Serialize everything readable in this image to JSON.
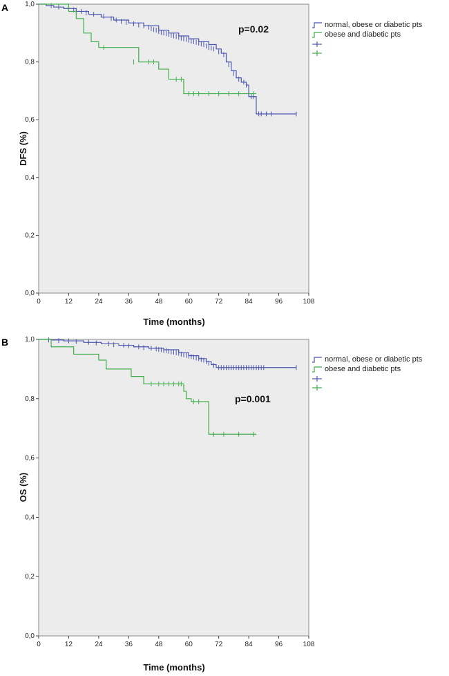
{
  "chart_data": [
    {
      "type": "line",
      "panel_label": "A",
      "xlabel": "Time (months)",
      "ylabel": "DFS (%)",
      "annotation": "p=0.02",
      "xlim": [
        0,
        108
      ],
      "ylim": [
        0.0,
        1.0
      ],
      "xticks": [
        "0",
        "12",
        "24",
        "36",
        "48",
        "60",
        "72",
        "84",
        "96",
        "108"
      ],
      "yticks": [
        "0,0",
        "0,2",
        "0,4",
        "0,6",
        "0,8",
        "1,0"
      ],
      "background": "#ececec",
      "legend_placement": "right",
      "series": [
        {
          "name": "normal, obese or diabetic pts",
          "color": "#4a55b0",
          "steps": [
            [
              0,
              1.0
            ],
            [
              3,
              0.995
            ],
            [
              6,
              0.99
            ],
            [
              10,
              0.985
            ],
            [
              15,
              0.975
            ],
            [
              20,
              0.965
            ],
            [
              25,
              0.955
            ],
            [
              30,
              0.945
            ],
            [
              36,
              0.935
            ],
            [
              42,
              0.925
            ],
            [
              48,
              0.91
            ],
            [
              52,
              0.9
            ],
            [
              56,
              0.89
            ],
            [
              60,
              0.88
            ],
            [
              64,
              0.87
            ],
            [
              68,
              0.86
            ],
            [
              71,
              0.845
            ],
            [
              73,
              0.83
            ],
            [
              75,
              0.8
            ],
            [
              77,
              0.77
            ],
            [
              79,
              0.745
            ],
            [
              81,
              0.73
            ],
            [
              83,
              0.72
            ],
            [
              84,
              0.68
            ],
            [
              87,
              0.62
            ],
            [
              103,
              0.62
            ]
          ],
          "censor": [
            [
              5,
              0.995
            ],
            [
              8,
              0.99
            ],
            [
              12,
              0.985
            ],
            [
              14,
              0.98
            ],
            [
              17,
              0.975
            ],
            [
              19,
              0.97
            ],
            [
              22,
              0.965
            ],
            [
              26,
              0.958
            ],
            [
              29,
              0.95
            ],
            [
              31,
              0.945
            ],
            [
              33,
              0.94
            ],
            [
              35,
              0.937
            ],
            [
              38,
              0.932
            ],
            [
              40,
              0.928
            ],
            [
              42,
              0.925
            ],
            [
              44,
              0.92
            ],
            [
              45,
              0.915
            ],
            [
              46,
              0.912
            ],
            [
              47,
              0.91
            ],
            [
              48,
              0.905
            ],
            [
              49,
              0.902
            ],
            [
              50,
              0.9
            ],
            [
              51,
              0.898
            ],
            [
              52,
              0.895
            ],
            [
              53,
              0.892
            ],
            [
              54,
              0.89
            ],
            [
              55,
              0.888
            ],
            [
              56,
              0.885
            ],
            [
              57,
              0.882
            ],
            [
              58,
              0.88
            ],
            [
              59,
              0.878
            ],
            [
              60,
              0.875
            ],
            [
              61,
              0.872
            ],
            [
              62,
              0.87
            ],
            [
              63,
              0.868
            ],
            [
              64,
              0.865
            ],
            [
              65,
              0.862
            ],
            [
              66,
              0.86
            ],
            [
              67,
              0.855
            ],
            [
              68,
              0.85
            ],
            [
              69,
              0.848
            ],
            [
              70,
              0.845
            ],
            [
              72,
              0.835
            ],
            [
              74,
              0.825
            ],
            [
              76,
              0.79
            ],
            [
              78,
              0.76
            ],
            [
              80,
              0.74
            ],
            [
              82,
              0.73
            ],
            [
              83,
              0.72
            ],
            [
              85,
              0.68
            ],
            [
              86,
              0.68
            ],
            [
              88,
              0.62
            ],
            [
              89,
              0.62
            ],
            [
              91,
              0.62
            ],
            [
              93,
              0.62
            ],
            [
              103,
              0.62
            ]
          ]
        },
        {
          "name": "obese and diabetic pts",
          "color": "#3fae4a",
          "steps": [
            [
              0,
              1.0
            ],
            [
              12,
              0.975
            ],
            [
              15,
              0.95
            ],
            [
              18,
              0.9
            ],
            [
              21,
              0.87
            ],
            [
              24,
              0.85
            ],
            [
              40,
              0.8
            ],
            [
              48,
              0.775
            ],
            [
              52,
              0.74
            ],
            [
              58,
              0.69
            ],
            [
              87,
              0.69
            ]
          ],
          "censor": [
            [
              26,
              0.85
            ],
            [
              38,
              0.8
            ],
            [
              44,
              0.8
            ],
            [
              46,
              0.8
            ],
            [
              55,
              0.74
            ],
            [
              57,
              0.74
            ],
            [
              60,
              0.69
            ],
            [
              62,
              0.69
            ],
            [
              64,
              0.69
            ],
            [
              68,
              0.69
            ],
            [
              72,
              0.69
            ],
            [
              76,
              0.69
            ],
            [
              80,
              0.69
            ],
            [
              86,
              0.69
            ]
          ]
        }
      ]
    },
    {
      "type": "line",
      "panel_label": "B",
      "xlabel": "Time (months)",
      "ylabel": "OS (%)",
      "annotation": "p=0.001",
      "xlim": [
        0,
        108
      ],
      "ylim": [
        0.0,
        1.0
      ],
      "xticks": [
        "0",
        "12",
        "24",
        "36",
        "48",
        "60",
        "72",
        "84",
        "96",
        "108"
      ],
      "yticks": [
        "0,0",
        "0,2",
        "0,4",
        "0,6",
        "0,8",
        "1,0"
      ],
      "background": "#ececec",
      "legend_placement": "right",
      "series": [
        {
          "name": "normal, obese or diabetic pts",
          "color": "#4a55b0",
          "steps": [
            [
              0,
              1.0
            ],
            [
              5,
              0.998
            ],
            [
              10,
              0.995
            ],
            [
              18,
              0.99
            ],
            [
              25,
              0.985
            ],
            [
              32,
              0.98
            ],
            [
              38,
              0.975
            ],
            [
              44,
              0.97
            ],
            [
              50,
              0.965
            ],
            [
              56,
              0.955
            ],
            [
              60,
              0.945
            ],
            [
              64,
              0.935
            ],
            [
              67,
              0.925
            ],
            [
              69,
              0.915
            ],
            [
              71,
              0.905
            ],
            [
              103,
              0.905
            ]
          ],
          "censor": [
            [
              4,
              0.998
            ],
            [
              8,
              0.996
            ],
            [
              12,
              0.995
            ],
            [
              15,
              0.993
            ],
            [
              20,
              0.99
            ],
            [
              23,
              0.988
            ],
            [
              28,
              0.985
            ],
            [
              30,
              0.982
            ],
            [
              34,
              0.98
            ],
            [
              36,
              0.978
            ],
            [
              40,
              0.975
            ],
            [
              42,
              0.972
            ],
            [
              45,
              0.97
            ],
            [
              47,
              0.968
            ],
            [
              48,
              0.966
            ],
            [
              49,
              0.965
            ],
            [
              50,
              0.963
            ],
            [
              51,
              0.962
            ],
            [
              52,
              0.96
            ],
            [
              53,
              0.958
            ],
            [
              54,
              0.957
            ],
            [
              55,
              0.955
            ],
            [
              56,
              0.953
            ],
            [
              57,
              0.95
            ],
            [
              58,
              0.948
            ],
            [
              59,
              0.946
            ],
            [
              60,
              0.944
            ],
            [
              61,
              0.942
            ],
            [
              62,
              0.94
            ],
            [
              63,
              0.937
            ],
            [
              64,
              0.935
            ],
            [
              65,
              0.932
            ],
            [
              66,
              0.93
            ],
            [
              67,
              0.925
            ],
            [
              68,
              0.92
            ],
            [
              70,
              0.912
            ],
            [
              72,
              0.905
            ],
            [
              73,
              0.905
            ],
            [
              74,
              0.905
            ],
            [
              75,
              0.905
            ],
            [
              76,
              0.905
            ],
            [
              77,
              0.905
            ],
            [
              78,
              0.905
            ],
            [
              79,
              0.905
            ],
            [
              80,
              0.905
            ],
            [
              81,
              0.905
            ],
            [
              82,
              0.905
            ],
            [
              83,
              0.905
            ],
            [
              84,
              0.905
            ],
            [
              85,
              0.905
            ],
            [
              86,
              0.905
            ],
            [
              87,
              0.905
            ],
            [
              88,
              0.905
            ],
            [
              89,
              0.905
            ],
            [
              90,
              0.905
            ],
            [
              103,
              0.905
            ]
          ]
        },
        {
          "name": "obese and diabetic pts",
          "color": "#3fae4a",
          "steps": [
            [
              0,
              1.0
            ],
            [
              5,
              0.975
            ],
            [
              14,
              0.95
            ],
            [
              24,
              0.93
            ],
            [
              27,
              0.9
            ],
            [
              37,
              0.875
            ],
            [
              42,
              0.85
            ],
            [
              58,
              0.825
            ],
            [
              59,
              0.8
            ],
            [
              61,
              0.79
            ],
            [
              68,
              0.68
            ],
            [
              87,
              0.68
            ]
          ],
          "censor": [
            [
              45,
              0.85
            ],
            [
              48,
              0.85
            ],
            [
              50,
              0.85
            ],
            [
              52,
              0.85
            ],
            [
              54,
              0.85
            ],
            [
              56,
              0.85
            ],
            [
              57,
              0.85
            ],
            [
              62,
              0.79
            ],
            [
              64,
              0.79
            ],
            [
              70,
              0.68
            ],
            [
              74,
              0.68
            ],
            [
              80,
              0.68
            ],
            [
              86,
              0.68
            ]
          ]
        }
      ]
    }
  ]
}
